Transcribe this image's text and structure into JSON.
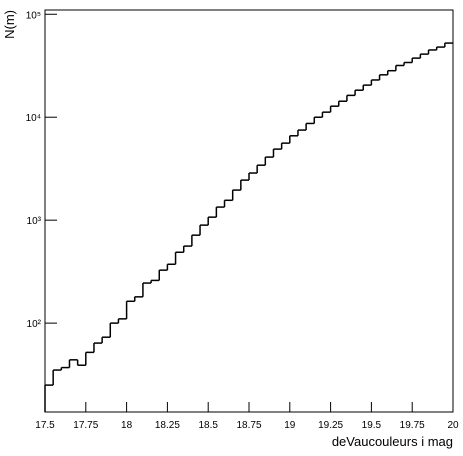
{
  "chart_data": {
    "type": "histogram",
    "xlabel": "deVaucouleurs i mag",
    "ylabel": "N(m)",
    "bins": [
      17.5,
      17.55,
      17.6,
      17.65,
      17.7,
      17.75,
      17.8,
      17.85,
      17.9,
      17.95,
      18,
      18.05,
      18.1,
      18.15,
      18.2,
      18.25,
      18.3,
      18.35,
      18.4,
      18.45,
      18.5,
      18.55,
      18.6,
      18.65,
      18.7,
      18.75,
      18.8,
      18.85,
      18.9,
      18.95,
      19,
      19.05,
      19.1,
      19.15,
      19.2,
      19.25,
      19.3,
      19.35,
      19.4,
      19.45,
      19.5,
      19.55,
      19.6,
      19.65,
      19.7,
      19.75,
      19.8,
      19.85,
      19.9,
      19.95,
      20
    ],
    "values": [
      25,
      35,
      37,
      44,
      39,
      52,
      64,
      73,
      100,
      110,
      163,
      180,
      245,
      260,
      327,
      373,
      488,
      560,
      715,
      895,
      1070,
      1340,
      1560,
      1960,
      2450,
      2870,
      3420,
      4100,
      4900,
      5600,
      6600,
      7500,
      8700,
      10000,
      11200,
      12800,
      14300,
      16300,
      18300,
      20500,
      23000,
      25800,
      28300,
      31800,
      34000,
      37500,
      41000,
      45000,
      48000,
      52500
    ],
    "color": "#000000",
    "xlim": [
      17.5,
      20
    ],
    "xticks": [
      17.5,
      17.75,
      18,
      18.25,
      18.5,
      18.75,
      19,
      19.25,
      19.5,
      19.75,
      20
    ],
    "ylim": [
      13.7,
      110000
    ],
    "yscale": "log",
    "yticks": [
      {
        "value": 100,
        "label": "10²"
      },
      {
        "value": 1000,
        "label": "10³"
      },
      {
        "value": 10000,
        "label": "10⁴"
      },
      {
        "value": 100000,
        "label": "10⁵"
      }
    ]
  }
}
